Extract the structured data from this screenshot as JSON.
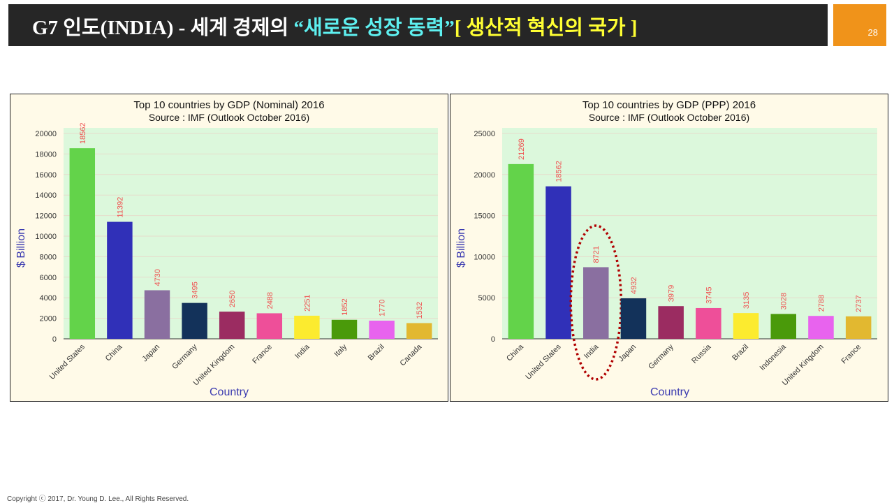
{
  "header": {
    "title_prefix": "G7 인도(INDIA) - 세계 경제의 ",
    "title_quote": "“새로운 성장 동력”",
    "title_bracket": "[ 생산적 혁신의 국가 ]",
    "page_number": "28"
  },
  "footer": {
    "copyright": "Copyright ⓒ 2017, Dr. Young D. Lee., All Rights Reserved."
  },
  "chart_data": [
    {
      "type": "bar",
      "title": "Top 10 countries by GDP (Nominal) 2016",
      "subtitle": "Source : IMF (Outlook October 2016)",
      "xlabel": "Country",
      "ylabel": "$ Billion",
      "ylim": [
        0,
        20500
      ],
      "yticks": [
        0,
        2000,
        4000,
        6000,
        8000,
        10000,
        12000,
        14000,
        16000,
        18000,
        20000
      ],
      "grid": true,
      "categories": [
        "United States",
        "China",
        "Japan",
        "Germany",
        "United Kingdom",
        "France",
        "India",
        "Italy",
        "Brazil",
        "Canada"
      ],
      "values": [
        18562,
        11392,
        4730,
        3495,
        2650,
        2488,
        2251,
        1852,
        1770,
        1532
      ],
      "colors": [
        "#63d34a",
        "#3030b8",
        "#8a6fa0",
        "#13325a",
        "#9b2c61",
        "#ee4f99",
        "#fceb2f",
        "#4a9a0a",
        "#e863ee",
        "#e2b830"
      ]
    },
    {
      "type": "bar",
      "title": "Top 10 countries by GDP (PPP) 2016",
      "subtitle": "Source : IMF (Outlook October 2016)",
      "xlabel": "Country",
      "ylabel": "$ Billion",
      "ylim": [
        0,
        25600
      ],
      "yticks": [
        0,
        5000,
        10000,
        15000,
        20000,
        25000
      ],
      "grid": true,
      "categories": [
        "China",
        "United States",
        "India",
        "Japan",
        "Germany",
        "Russia",
        "Brazil",
        "Indonesia",
        "United Kingdom",
        "France"
      ],
      "values": [
        21269,
        18562,
        8721,
        4932,
        3979,
        3745,
        3135,
        3028,
        2788,
        2737
      ],
      "colors": [
        "#63d34a",
        "#3030b8",
        "#8a6fa0",
        "#13325a",
        "#9b2c61",
        "#ee4f99",
        "#fceb2f",
        "#4a9a0a",
        "#e863ee",
        "#e2b830"
      ],
      "highlight": "India",
      "highlight_color": "#b00000"
    }
  ]
}
